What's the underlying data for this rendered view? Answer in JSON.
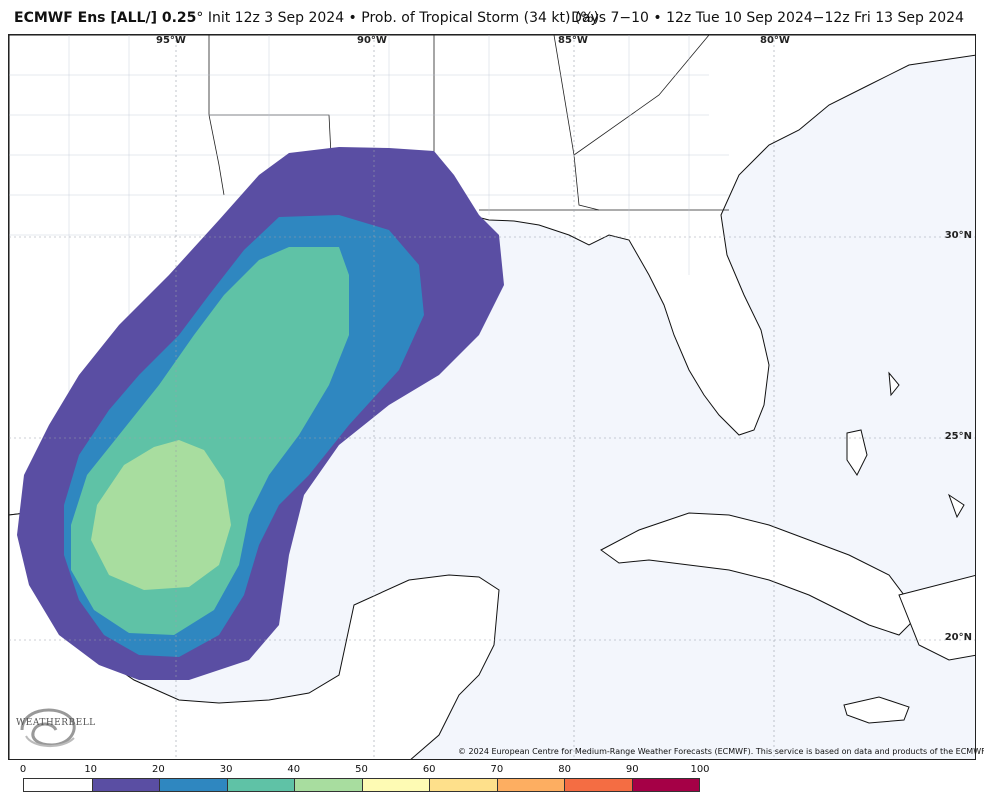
{
  "header": {
    "model": "ECMWF Ens [ALL/] 0.25",
    "degree": "°",
    "init": " Init 12z 3 Sep 2024",
    "product": " • Prob. of Tropical Storm (34 kt) (%)",
    "valid": "Days 7−10 • 12z Tue 10 Sep 2024−12z Fri 13 Sep 2024"
  },
  "map": {
    "lon_labels": [
      "95°W",
      "90°W",
      "85°W",
      "80°W"
    ],
    "lat_labels": [
      "30°N",
      "25°N",
      "20°N"
    ],
    "ocean_color": "#f3f6fc",
    "land_color": "#ffffff"
  },
  "copyright": "© 2024 European Centre for Medium-Range Weather Forecasts (ECMWF). This service is based on data and products of the ECMWF.",
  "logo": {
    "text": "WEATHERBELL"
  },
  "colorbar": {
    "ticks": [
      "0",
      "10",
      "20",
      "30",
      "40",
      "50",
      "60",
      "70",
      "80",
      "90",
      "100"
    ],
    "colors": [
      "#ffffff",
      "#5a4ea3",
      "#2f87c0",
      "#5fc2a6",
      "#a8dd9f",
      "#fefbb4",
      "#fee08b",
      "#fdae61",
      "#f46d43",
      "#a50046"
    ]
  }
}
